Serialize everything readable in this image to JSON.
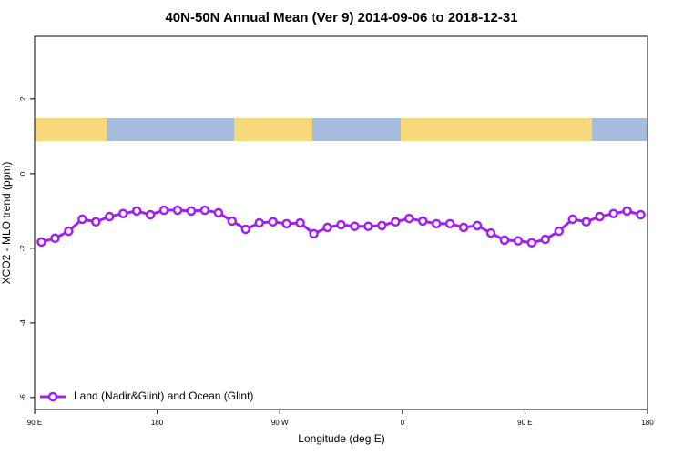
{
  "chart_data": {
    "type": "line",
    "title": "40N-50N Annual Mean (Ver 9)   2014-09-06 to 2018-12-31",
    "x_label": "Longitude (deg E)",
    "y_label": "XCO2 - MLO trend (ppm)",
    "xlim": [
      90,
      540
    ],
    "xticks": [
      {
        "value": 90,
        "label": "90 E"
      },
      {
        "value": 180,
        "label": "180"
      },
      {
        "value": 270,
        "label": "90 W"
      },
      {
        "value": 360,
        "label": "0"
      },
      {
        "value": 450,
        "label": "90 E"
      },
      {
        "value": 540,
        "label": "180"
      }
    ],
    "ylim": [
      -6.32,
      3.68
    ],
    "yticks": [
      -6,
      -4,
      -2,
      0,
      2
    ],
    "x": [
      95,
      105,
      115,
      125,
      135,
      145,
      155,
      165,
      175,
      185,
      195,
      205,
      215,
      225,
      235,
      245,
      255,
      265,
      275,
      285,
      295,
      305,
      315,
      325,
      335,
      345,
      355,
      365,
      375,
      385,
      395,
      405,
      415,
      425,
      435,
      445,
      455,
      465,
      475,
      485,
      495,
      505,
      515,
      525,
      535
    ],
    "series": [
      {
        "name": "Land (Nadir&Glint) and Ocean (Glint)",
        "color": "#a020f0",
        "values": [
          -1.83,
          -1.73,
          -1.54,
          -1.22,
          -1.29,
          -1.15,
          -1.07,
          -1.0,
          -1.1,
          -0.98,
          -0.98,
          -1.0,
          -0.98,
          -1.05,
          -1.27,
          -1.49,
          -1.32,
          -1.29,
          -1.34,
          -1.32,
          -1.61,
          -1.44,
          -1.37,
          -1.41,
          -1.41,
          -1.39,
          -1.29,
          -1.2,
          -1.27,
          -1.34,
          -1.34,
          -1.44,
          -1.39,
          -1.59,
          -1.78,
          -1.8,
          -1.85,
          -1.76,
          -1.54,
          -1.22,
          -1.29,
          -1.15,
          -1.07,
          -1.0,
          -1.1
        ]
      }
    ],
    "legend": "bottom-left"
  }
}
